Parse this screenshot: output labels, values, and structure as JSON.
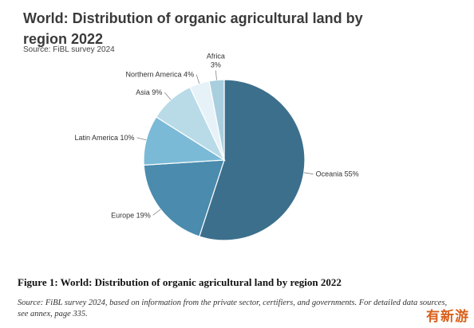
{
  "chart_data": {
    "type": "pie",
    "title": "World: Distribution of organic agricultural land by region 2022",
    "source": "Source: FiBL survey 2024",
    "slices": [
      {
        "label": "Oceania",
        "value": 55,
        "value_label": "Oceania 55%",
        "color": "#3c6f8c"
      },
      {
        "label": "Europe",
        "value": 19,
        "value_label": "Europe 19%",
        "color": "#4a8bae"
      },
      {
        "label": "Latin America",
        "value": 10,
        "value_label": "Latin America 10%",
        "color": "#7bbad6"
      },
      {
        "label": "Asia",
        "value": 9,
        "value_label": "Asia 9%",
        "color": "#b9dbe8"
      },
      {
        "label": "Northern America",
        "value": 4,
        "value_label": "Northern America 4%",
        "color": "#e6f2f7"
      },
      {
        "label": "Africa",
        "value": 3,
        "value_label": "Africa\n3%",
        "color": "#a9cfdf"
      }
    ]
  },
  "figure": {
    "caption": "Figure 1: World: Distribution of organic agricultural land by region 2022",
    "note": "Source: FiBL survey 2024, based on information from the private sector, certifiers, and governments. For detailed data sources, see annex, page 335."
  },
  "watermark": "有新游"
}
